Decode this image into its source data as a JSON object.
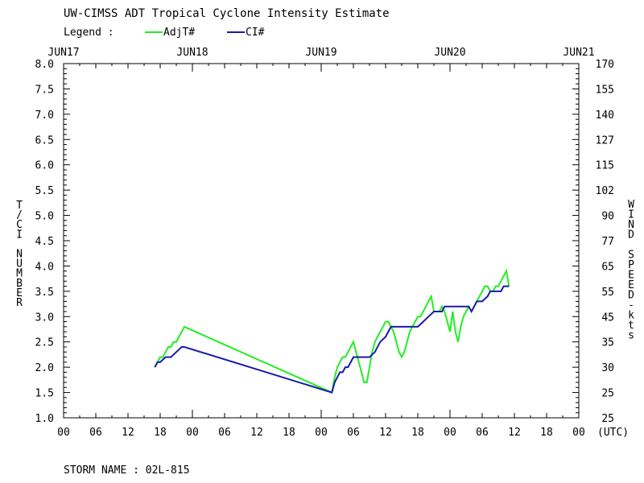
{
  "chart_data": {
    "type": "line",
    "title": "UW-CIMSS ADT Tropical Cyclone Intensity Estimate",
    "legend_label": "Legend :",
    "legend_placement": "top-left",
    "x_unit_label": "(UTC)",
    "date_labels": [
      "JUN17",
      "JUN18",
      "JUN19",
      "JUN20",
      "JUN21"
    ],
    "hour_labels": [
      "00",
      "06",
      "12",
      "18",
      "00",
      "06",
      "12",
      "18",
      "00",
      "06",
      "12",
      "18",
      "00",
      "06",
      "12",
      "18",
      "00"
    ],
    "left_axis": {
      "label": "T/CI NUMBER",
      "range": [
        1.0,
        8.0
      ],
      "ticks": [
        "1.0",
        "1.5",
        "2.0",
        "2.5",
        "3.0",
        "3.5",
        "4.0",
        "4.5",
        "5.0",
        "5.5",
        "6.0",
        "6.5",
        "7.0",
        "7.5",
        "8.0"
      ]
    },
    "right_axis": {
      "label": "WIND SPEED-kts",
      "ticks": [
        "25",
        "25",
        "30",
        "35",
        "45",
        "55",
        "65",
        "77",
        "90",
        "102",
        "115",
        "127",
        "140",
        "155",
        "170"
      ]
    },
    "storm_name_label": "STORM NAME : 02L-815",
    "series": [
      {
        "name": "AdjT#",
        "color": "#22ee22",
        "points": [
          [
            "2019-06-17 17:00",
            2.0
          ],
          [
            "2019-06-17 17:30",
            2.1
          ],
          [
            "2019-06-17 18:00",
            2.2
          ],
          [
            "2019-06-17 18:30",
            2.2
          ],
          [
            "2019-06-17 19:00",
            2.3
          ],
          [
            "2019-06-17 19:30",
            2.4
          ],
          [
            "2019-06-17 20:00",
            2.4
          ],
          [
            "2019-06-17 20:30",
            2.5
          ],
          [
            "2019-06-17 21:00",
            2.5
          ],
          [
            "2019-06-17 21:30",
            2.6
          ],
          [
            "2019-06-17 22:00",
            2.7
          ],
          [
            "2019-06-17 22:30",
            2.8
          ],
          [
            "2019-06-19 02:00",
            1.5
          ],
          [
            "2019-06-19 02:30",
            1.8
          ],
          [
            "2019-06-19 03:00",
            2.0
          ],
          [
            "2019-06-19 03:30",
            2.1
          ],
          [
            "2019-06-19 04:00",
            2.2
          ],
          [
            "2019-06-19 04:30",
            2.2
          ],
          [
            "2019-06-19 05:00",
            2.3
          ],
          [
            "2019-06-19 05:30",
            2.4
          ],
          [
            "2019-06-19 06:00",
            2.5
          ],
          [
            "2019-06-19 06:30",
            2.3
          ],
          [
            "2019-06-19 07:00",
            2.1
          ],
          [
            "2019-06-19 07:30",
            1.9
          ],
          [
            "2019-06-19 08:00",
            1.7
          ],
          [
            "2019-06-19 08:30",
            1.7
          ],
          [
            "2019-06-19 09:00",
            2.0
          ],
          [
            "2019-06-19 09:30",
            2.3
          ],
          [
            "2019-06-19 10:00",
            2.5
          ],
          [
            "2019-06-19 10:30",
            2.6
          ],
          [
            "2019-06-19 11:00",
            2.7
          ],
          [
            "2019-06-19 11:30",
            2.8
          ],
          [
            "2019-06-19 12:00",
            2.9
          ],
          [
            "2019-06-19 12:30",
            2.9
          ],
          [
            "2019-06-19 13:00",
            2.8
          ],
          [
            "2019-06-19 13:30",
            2.7
          ],
          [
            "2019-06-19 14:00",
            2.5
          ],
          [
            "2019-06-19 14:30",
            2.3
          ],
          [
            "2019-06-19 15:00",
            2.2
          ],
          [
            "2019-06-19 15:30",
            2.3
          ],
          [
            "2019-06-19 16:00",
            2.5
          ],
          [
            "2019-06-19 16:30",
            2.7
          ],
          [
            "2019-06-19 17:00",
            2.8
          ],
          [
            "2019-06-19 17:30",
            2.9
          ],
          [
            "2019-06-19 18:00",
            3.0
          ],
          [
            "2019-06-19 18:30",
            3.0
          ],
          [
            "2019-06-19 19:00",
            3.1
          ],
          [
            "2019-06-19 19:30",
            3.2
          ],
          [
            "2019-06-19 20:00",
            3.3
          ],
          [
            "2019-06-19 20:30",
            3.4
          ],
          [
            "2019-06-19 21:00",
            3.1
          ],
          [
            "2019-06-19 21:30",
            3.1
          ],
          [
            "2019-06-19 22:00",
            3.1
          ],
          [
            "2019-06-19 22:30",
            3.2
          ],
          [
            "2019-06-19 23:00",
            3.1
          ],
          [
            "2019-06-19 23:30",
            2.9
          ],
          [
            "2019-06-20 00:00",
            2.7
          ],
          [
            "2019-06-20 00:30",
            3.1
          ],
          [
            "2019-06-20 01:00",
            2.7
          ],
          [
            "2019-06-20 01:30",
            2.5
          ],
          [
            "2019-06-20 02:00",
            2.8
          ],
          [
            "2019-06-20 02:30",
            3.0
          ],
          [
            "2019-06-20 03:00",
            3.1
          ],
          [
            "2019-06-20 03:30",
            3.2
          ],
          [
            "2019-06-20 04:00",
            3.1
          ],
          [
            "2019-06-20 04:30",
            3.2
          ],
          [
            "2019-06-20 05:00",
            3.3
          ],
          [
            "2019-06-20 05:30",
            3.4
          ],
          [
            "2019-06-20 06:00",
            3.5
          ],
          [
            "2019-06-20 06:30",
            3.6
          ],
          [
            "2019-06-20 07:00",
            3.6
          ],
          [
            "2019-06-20 07:30",
            3.5
          ],
          [
            "2019-06-20 08:00",
            3.5
          ],
          [
            "2019-06-20 08:30",
            3.6
          ],
          [
            "2019-06-20 09:00",
            3.6
          ],
          [
            "2019-06-20 09:30",
            3.7
          ],
          [
            "2019-06-20 10:00",
            3.8
          ],
          [
            "2019-06-20 10:30",
            3.9
          ],
          [
            "2019-06-20 11:00",
            3.6
          ]
        ]
      },
      {
        "name": "CI#",
        "color": "#1a1aa8",
        "points": [
          [
            "2019-06-17 17:00",
            2.0
          ],
          [
            "2019-06-17 17:30",
            2.1
          ],
          [
            "2019-06-17 18:00",
            2.1
          ],
          [
            "2019-06-17 19:00",
            2.2
          ],
          [
            "2019-06-17 20:00",
            2.2
          ],
          [
            "2019-06-17 21:00",
            2.3
          ],
          [
            "2019-06-17 22:00",
            2.4
          ],
          [
            "2019-06-17 22:30",
            2.4
          ],
          [
            "2019-06-19 02:00",
            1.5
          ],
          [
            "2019-06-19 02:30",
            1.7
          ],
          [
            "2019-06-19 03:00",
            1.8
          ],
          [
            "2019-06-19 03:30",
            1.9
          ],
          [
            "2019-06-19 04:00",
            1.9
          ],
          [
            "2019-06-19 04:30",
            2.0
          ],
          [
            "2019-06-19 05:00",
            2.0
          ],
          [
            "2019-06-19 05:30",
            2.1
          ],
          [
            "2019-06-19 06:00",
            2.2
          ],
          [
            "2019-06-19 09:00",
            2.2
          ],
          [
            "2019-06-19 10:00",
            2.3
          ],
          [
            "2019-06-19 11:00",
            2.5
          ],
          [
            "2019-06-19 12:00",
            2.6
          ],
          [
            "2019-06-19 12:30",
            2.7
          ],
          [
            "2019-06-19 13:00",
            2.8
          ],
          [
            "2019-06-19 18:00",
            2.8
          ],
          [
            "2019-06-19 19:00",
            2.9
          ],
          [
            "2019-06-19 20:00",
            3.0
          ],
          [
            "2019-06-19 21:00",
            3.1
          ],
          [
            "2019-06-19 22:30",
            3.1
          ],
          [
            "2019-06-19 23:00",
            3.2
          ],
          [
            "2019-06-20 03:30",
            3.2
          ],
          [
            "2019-06-20 04:00",
            3.1
          ],
          [
            "2019-06-20 04:30",
            3.2
          ],
          [
            "2019-06-20 05:00",
            3.3
          ],
          [
            "2019-06-20 06:00",
            3.3
          ],
          [
            "2019-06-20 07:00",
            3.4
          ],
          [
            "2019-06-20 07:30",
            3.5
          ],
          [
            "2019-06-20 09:30",
            3.5
          ],
          [
            "2019-06-20 10:00",
            3.6
          ],
          [
            "2019-06-20 11:00",
            3.6
          ]
        ]
      }
    ]
  }
}
